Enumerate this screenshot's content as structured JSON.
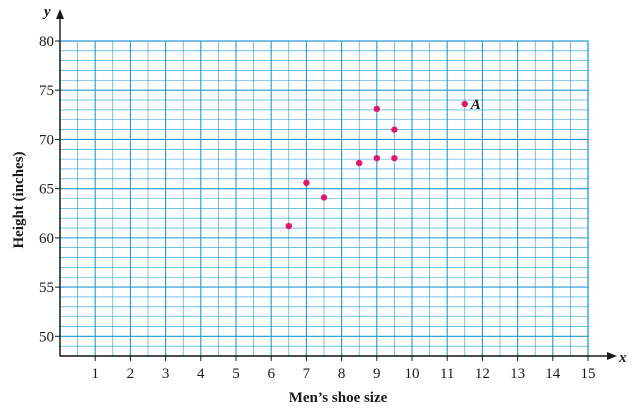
{
  "chart_data": {
    "type": "scatter",
    "title": "",
    "xlabel": "Men’s shoe size",
    "ylabel": "Height (inches)",
    "x_axis_letter": "x",
    "y_axis_letter": "y",
    "xlim": [
      0,
      15
    ],
    "ylim": [
      48,
      80
    ],
    "x_ticks": [
      1,
      2,
      3,
      4,
      5,
      6,
      7,
      8,
      9,
      10,
      11,
      12,
      13,
      14,
      15
    ],
    "y_ticks": [
      50,
      55,
      60,
      65,
      70,
      75,
      80
    ],
    "grid": true,
    "grid_minor_x": 0.5,
    "grid_minor_y": 1,
    "colors": {
      "grid": "#1e9ad6",
      "points": "#e0186c",
      "axes": "#1a1a1a"
    },
    "points": [
      {
        "x": 6.5,
        "y": 61.2
      },
      {
        "x": 7.0,
        "y": 65.6
      },
      {
        "x": 7.5,
        "y": 64.1
      },
      {
        "x": 8.5,
        "y": 67.6
      },
      {
        "x": 9.0,
        "y": 68.1
      },
      {
        "x": 9.0,
        "y": 73.1
      },
      {
        "x": 9.5,
        "y": 68.1
      },
      {
        "x": 9.5,
        "y": 71.0
      },
      {
        "x": 11.5,
        "y": 73.6,
        "label": "A"
      }
    ]
  }
}
